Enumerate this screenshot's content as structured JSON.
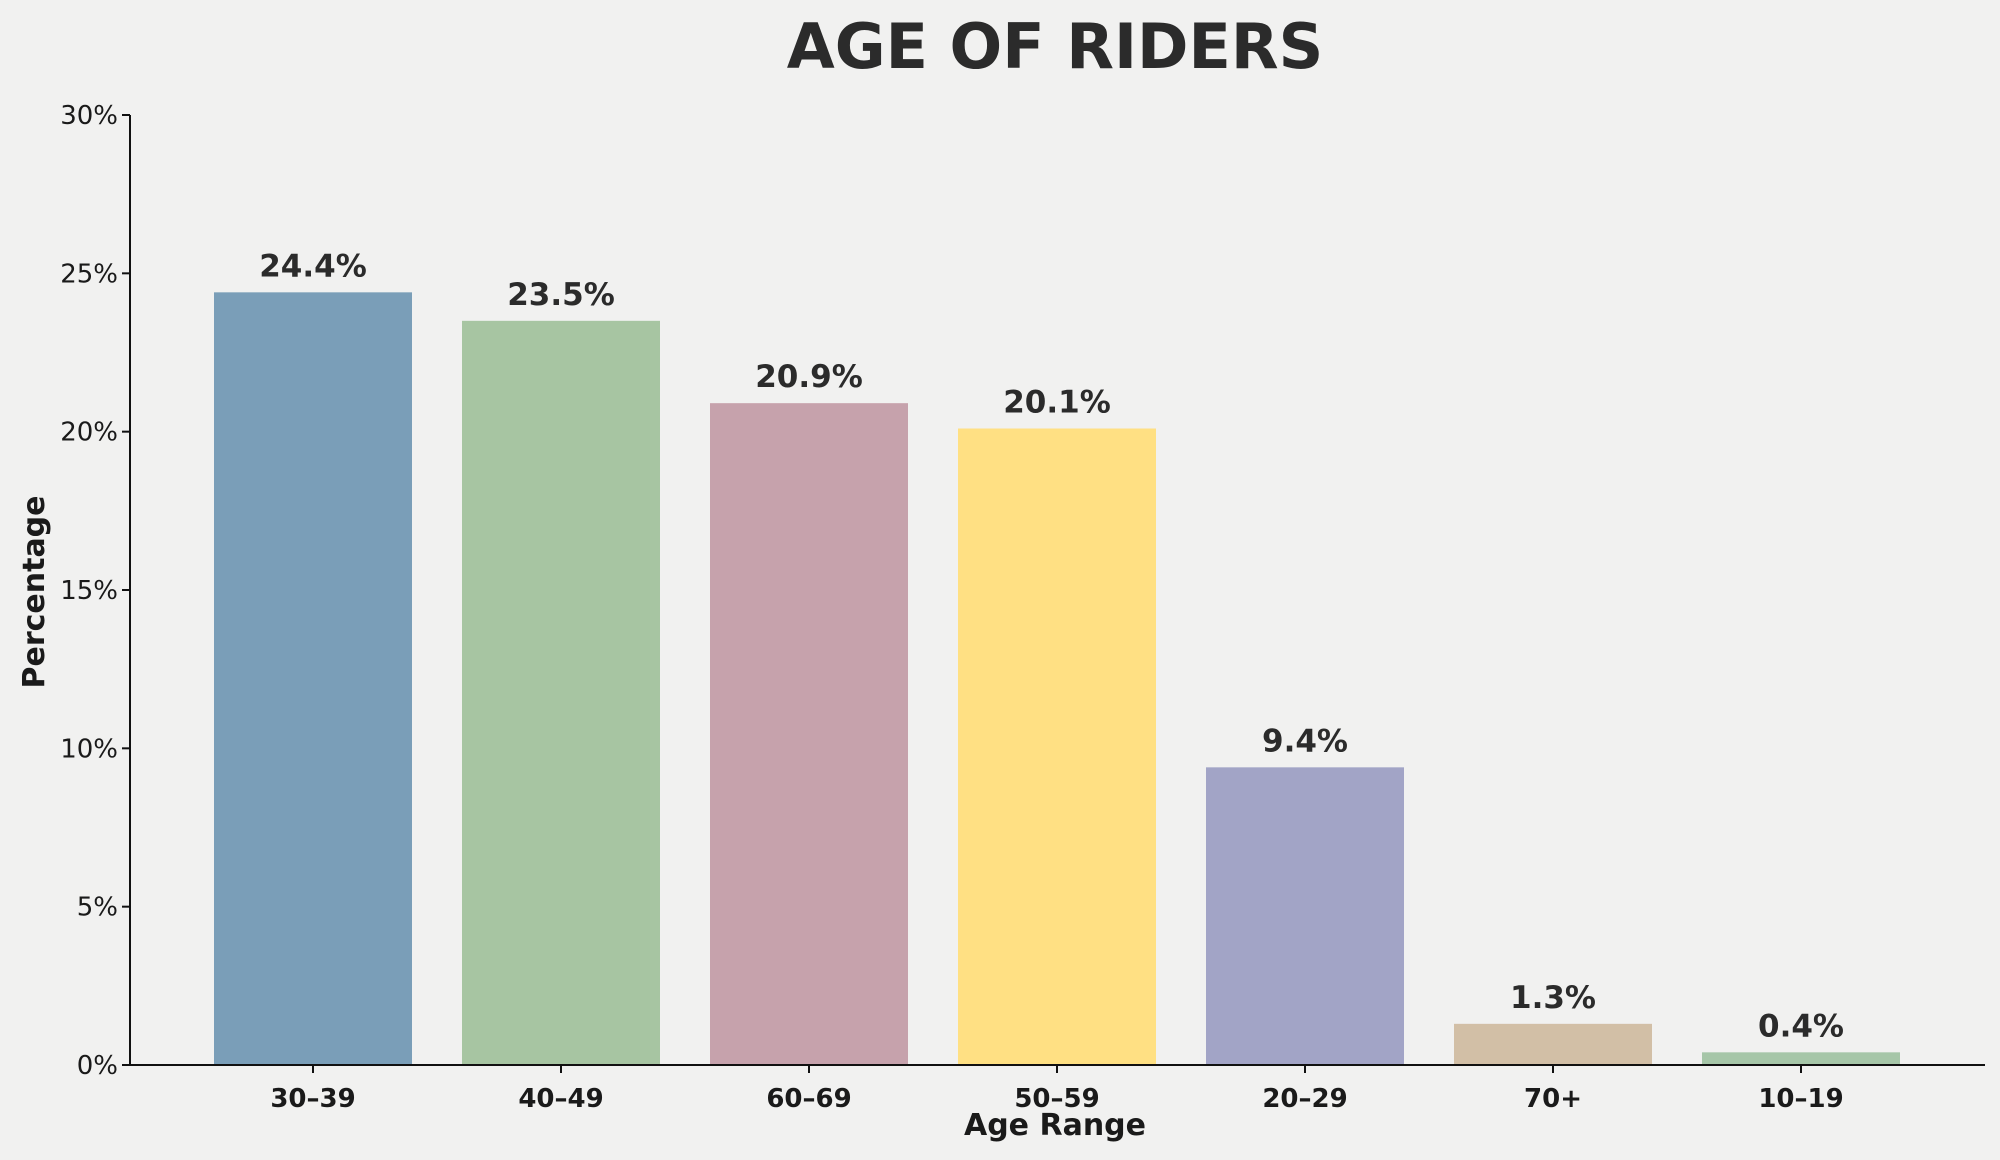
{
  "chart_data": {
    "type": "bar",
    "title": "AGE OF RIDERS",
    "xlabel": "Age Range",
    "ylabel": "Percentage",
    "categories": [
      "30–39",
      "40–49",
      "60–69",
      "50–59",
      "20–29",
      "70+",
      "10–19"
    ],
    "values": [
      24.4,
      23.5,
      20.9,
      20.1,
      9.4,
      1.3,
      0.4
    ],
    "data_labels": [
      "24.4%",
      "23.5%",
      "20.9%",
      "20.1%",
      "9.4%",
      "1.3%",
      "0.4%"
    ],
    "colors": [
      "#7a9eb8",
      "#a7c5a2",
      "#c6a2ac",
      "#ffe083",
      "#a2a4c6",
      "#d2bfa6",
      "#a6c6a8"
    ],
    "ylim": [
      0,
      30
    ],
    "yticks": [
      0,
      5,
      10,
      15,
      20,
      25,
      30
    ],
    "ytick_labels": [
      "0%",
      "5%",
      "10%",
      "15%",
      "20%",
      "25%",
      "30%"
    ],
    "grid": false,
    "legend": "none"
  }
}
